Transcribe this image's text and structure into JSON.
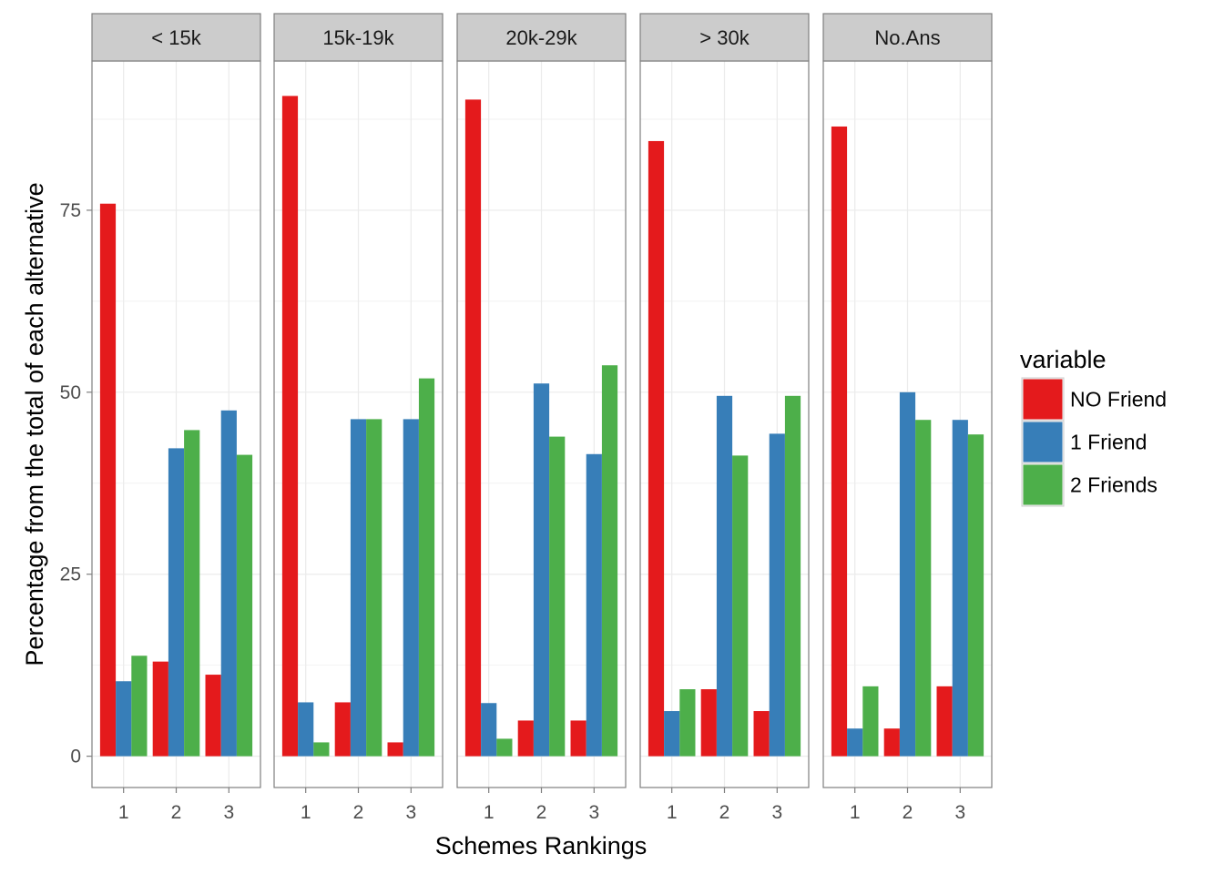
{
  "chart_data": {
    "type": "bar",
    "xlabel": "Schemes Rankings",
    "ylabel": "Percentage from the total of each alternative",
    "ylim": [
      -4.3,
      95.5
    ],
    "yticks": [
      0,
      25,
      50,
      75
    ],
    "categories": [
      "1",
      "2",
      "3"
    ],
    "grid": true,
    "legend": {
      "title": "variable",
      "position": "right",
      "entries": [
        "NO Friend",
        "1 Friend",
        "2 Friends"
      ]
    },
    "colors": {
      "NO Friend": "#e41a1c",
      "1 Friend": "#377eb8",
      "2 Friends": "#4daf4a"
    },
    "panels": [
      {
        "label": "< 15k",
        "series": [
          {
            "name": "NO Friend",
            "values": [
              75.9,
              13.0,
              11.2
            ]
          },
          {
            "name": "1 Friend",
            "values": [
              10.3,
              42.3,
              47.5
            ]
          },
          {
            "name": "2 Friends",
            "values": [
              13.8,
              44.8,
              41.4
            ]
          }
        ]
      },
      {
        "label": "15k-19k",
        "series": [
          {
            "name": "NO Friend",
            "values": [
              90.7,
              7.4,
              1.9
            ]
          },
          {
            "name": "1 Friend",
            "values": [
              7.4,
              46.3,
              46.3
            ]
          },
          {
            "name": "2 Friends",
            "values": [
              1.9,
              46.3,
              51.9
            ]
          }
        ]
      },
      {
        "label": "20k-29k",
        "series": [
          {
            "name": "NO Friend",
            "values": [
              90.2,
              4.9,
              4.9
            ]
          },
          {
            "name": "1 Friend",
            "values": [
              7.3,
              51.2,
              41.5
            ]
          },
          {
            "name": "2 Friends",
            "values": [
              2.4,
              43.9,
              53.7
            ]
          }
        ]
      },
      {
        "label": "> 30k",
        "series": [
          {
            "name": "NO Friend",
            "values": [
              84.5,
              9.2,
              6.2
            ]
          },
          {
            "name": "1 Friend",
            "values": [
              6.2,
              49.5,
              44.3
            ]
          },
          {
            "name": "2 Friends",
            "values": [
              9.2,
              41.3,
              49.5
            ]
          }
        ]
      },
      {
        "label": "No.Ans",
        "series": [
          {
            "name": "NO Friend",
            "values": [
              86.5,
              3.8,
              9.6
            ]
          },
          {
            "name": "1 Friend",
            "values": [
              3.8,
              50.0,
              46.2
            ]
          },
          {
            "name": "2 Friends",
            "values": [
              9.6,
              46.2,
              44.2
            ]
          }
        ]
      }
    ]
  }
}
